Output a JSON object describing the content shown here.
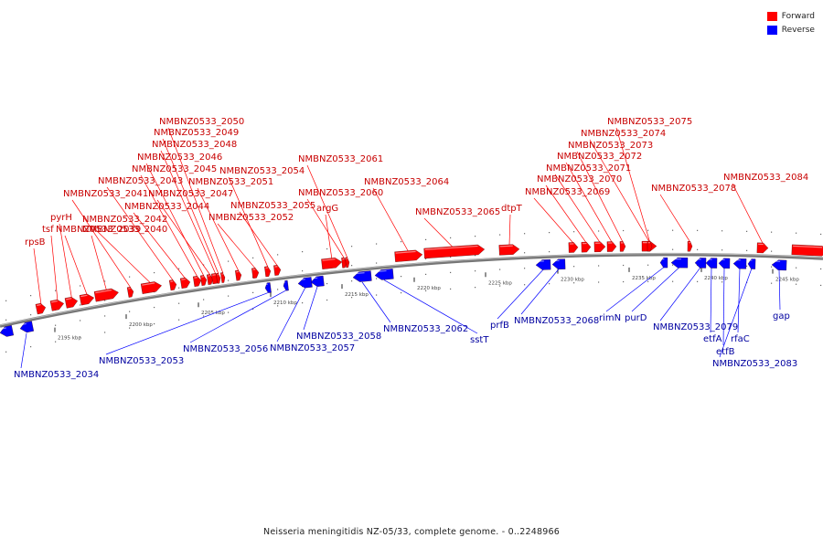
{
  "caption": "Neisseria meningitidis NZ-05/33, complete genome. - 0..2248966",
  "legend": [
    {
      "label": "Forward",
      "color": "#ff0000"
    },
    {
      "label": "Reverse",
      "color": "#0000ff"
    }
  ],
  "colors": {
    "forward": "#ff0000",
    "reverse": "#0000ff",
    "forward_label": "#c80000",
    "reverse_label": "#0000a0",
    "backbone": "#777777"
  },
  "ticks": [
    "2195 kbp",
    "2200 kbp",
    "2205 kbp",
    "2210 kbp",
    "2215 kbp",
    "2220 kbp",
    "2225 kbp",
    "2230 kbp",
    "2235 kbp",
    "2240 kbp",
    "2245 kbp"
  ],
  "forward_genes": [
    "rpsB",
    "tsf",
    "pyrH",
    "NMBNZ0533_2039",
    "NMBNZ0533_2040",
    "NMBNZ0533_2041",
    "NMBNZ0533_2042",
    "NMBNZ0533_2043",
    "NMBNZ0533_2044",
    "NMBNZ0533_2045",
    "NMBNZ0533_2046",
    "NMBNZ0533_2047",
    "NMBNZ0533_2048",
    "NMBNZ0533_2049",
    "NMBNZ0533_2050",
    "NMBNZ0533_2051",
    "NMBNZ0533_2052",
    "NMBNZ0533_2054",
    "NMBNZ0533_2055",
    "argG",
    "NMBNZ0533_2060",
    "NMBNZ0533_2061",
    "NMBNZ0533_2064",
    "NMBNZ0533_2065",
    "dtpT",
    "NMBNZ0533_2069",
    "NMBNZ0533_2070",
    "NMBNZ0533_2071",
    "NMBNZ0533_2072",
    "NMBNZ0533_2073",
    "NMBNZ0533_2074",
    "NMBNZ0533_2075",
    "NMBNZ0533_2078",
    "NMBNZ0533_2084"
  ],
  "reverse_genes": [
    "NMBNZ0533_2034",
    "NMBNZ0533_2053",
    "NMBNZ0533_2056",
    "NMBNZ0533_2057",
    "NMBNZ0533_2058",
    "NMBNZ0533_2062",
    "sstT",
    "prfB",
    "NMBNZ0533_2068",
    "rimN",
    "purD",
    "NMBNZ0533_2079",
    "etfA",
    "etfB",
    "rfaC",
    "NMBNZ0533_2083",
    "gap"
  ]
}
